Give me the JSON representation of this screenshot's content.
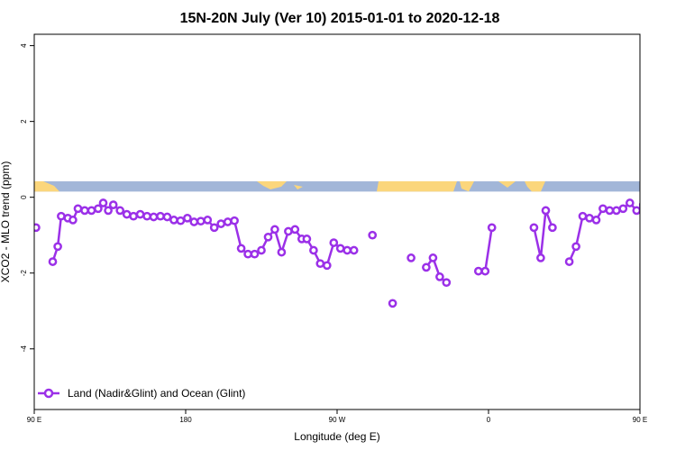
{
  "chart_data": {
    "type": "line",
    "title": "15N-20N July (Ver 10)   2015-01-01 to 2020-12-18",
    "xlabel": "Longitude (deg E)",
    "ylabel": "XCO2 - MLO trend (ppm)",
    "xlim": [
      90,
      450
    ],
    "ylim": [
      -5.6,
      4.3
    ],
    "x_ticks": [
      {
        "value": 90,
        "label": "90 E"
      },
      {
        "value": 180,
        "label": "180"
      },
      {
        "value": 270,
        "label": "90 W"
      },
      {
        "value": 360,
        "label": "0"
      },
      {
        "value": 450,
        "label": "90 E"
      },
      {
        "value": 540,
        "label": "180"
      }
    ],
    "y_ticks": [
      {
        "value": 4,
        "label": "4"
      },
      {
        "value": 2,
        "label": "2"
      },
      {
        "value": 0,
        "label": "0"
      },
      {
        "value": -2,
        "label": "-2"
      },
      {
        "value": -4,
        "label": "-4"
      }
    ],
    "map_strip": {
      "y_top": 0.42,
      "y_bottom": 0.15,
      "ocean_color": "#a2b6d8",
      "land_color": "#fbd67c"
    },
    "grid": false,
    "legend": {
      "position": "bottom-left"
    },
    "series": [
      {
        "name": "Land (Nadir&Glint) and Ocean (Glint)",
        "color": "#9b30e8",
        "segments": [
          [
            [
              91,
              -0.8
            ]
          ],
          [
            [
              101,
              -1.7
            ],
            [
              104,
              -1.3
            ],
            [
              106,
              -0.5
            ],
            [
              110,
              -0.55
            ],
            [
              113,
              -0.6
            ],
            [
              116,
              -0.3
            ],
            [
              120,
              -0.35
            ],
            [
              124,
              -0.35
            ],
            [
              128,
              -0.3
            ],
            [
              131,
              -0.15
            ],
            [
              134,
              -0.35
            ],
            [
              137,
              -0.2
            ],
            [
              141,
              -0.35
            ],
            [
              145,
              -0.45
            ],
            [
              149,
              -0.5
            ],
            [
              153,
              -0.45
            ],
            [
              157,
              -0.5
            ],
            [
              161,
              -0.52
            ],
            [
              165,
              -0.5
            ],
            [
              169,
              -0.52
            ],
            [
              173,
              -0.6
            ],
            [
              177,
              -0.62
            ],
            [
              181,
              -0.55
            ],
            [
              185,
              -0.65
            ],
            [
              189,
              -0.63
            ],
            [
              193,
              -0.6
            ],
            [
              197,
              -0.8
            ],
            [
              201,
              -0.7
            ],
            [
              205,
              -0.65
            ],
            [
              209,
              -0.62
            ],
            [
              213,
              -1.35
            ],
            [
              217,
              -1.5
            ],
            [
              221,
              -1.5
            ],
            [
              225,
              -1.4
            ],
            [
              229,
              -1.05
            ],
            [
              233,
              -0.85
            ],
            [
              237,
              -1.45
            ],
            [
              241,
              -0.9
            ],
            [
              245,
              -0.85
            ],
            [
              249,
              -1.1
            ],
            [
              252,
              -1.1
            ],
            [
              256,
              -1.4
            ],
            [
              260,
              -1.75
            ],
            [
              264,
              -1.8
            ],
            [
              268,
              -1.2
            ],
            [
              272,
              -1.35
            ],
            [
              276,
              -1.4
            ],
            [
              280,
              -1.4
            ]
          ],
          [
            [
              291,
              -1.0
            ]
          ],
          [
            [
              303,
              -2.8
            ]
          ],
          [
            [
              314,
              -1.6
            ]
          ],
          [
            [
              323,
              -1.85
            ],
            [
              327,
              -1.6
            ],
            [
              331,
              -2.1
            ],
            [
              335,
              -2.25
            ]
          ],
          [
            [
              354,
              -1.95
            ],
            [
              358,
              -1.95
            ],
            [
              362,
              -0.8
            ]
          ],
          [
            [
              387,
              -0.8
            ],
            [
              391,
              -1.6
            ],
            [
              394,
              -0.35
            ],
            [
              398,
              -0.8
            ]
          ],
          [
            [
              408,
              -1.7
            ],
            [
              412,
              -1.3
            ],
            [
              416,
              -0.5
            ],
            [
              420,
              -0.55
            ],
            [
              424,
              -0.6
            ],
            [
              428,
              -0.3
            ],
            [
              432,
              -0.35
            ],
            [
              436,
              -0.35
            ],
            [
              440,
              -0.3
            ],
            [
              444,
              -0.15
            ],
            [
              448,
              -0.35
            ],
            [
              452,
              -0.2
            ]
          ]
        ]
      }
    ]
  }
}
